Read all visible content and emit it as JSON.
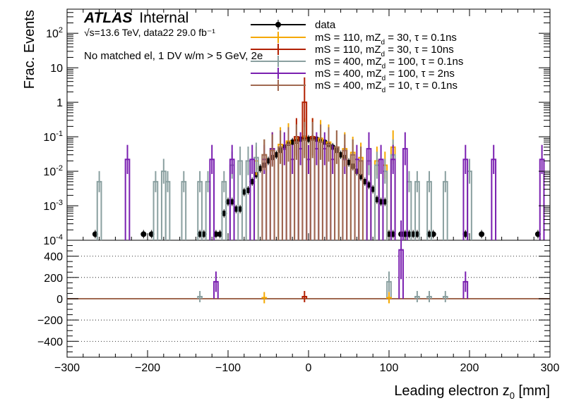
{
  "chart_data": [
    {
      "type": "histogram",
      "panel": "main",
      "ylabel": "Frac. Events",
      "yscale": "log",
      "ylim": [
        0.0001,
        500
      ],
      "xlim": [
        -300,
        300
      ],
      "ytick_labels": [
        "10^{-4}",
        "10^{-3}",
        "10^{-2}",
        "10^{-1}",
        "1",
        "10",
        "10^{2}"
      ],
      "atlas_label": {
        "bold": "ATLAS",
        "rest": "Internal"
      },
      "energy_label": "√s=13.6 TeV, data22 29.0 fb⁻¹",
      "selection_label": "No matched el, 1 DV w/m > 5 GeV, 2e",
      "series": [
        {
          "name": "data",
          "color": "#000000",
          "style": "points",
          "x": [
            -265,
            -205,
            -195,
            -135,
            -130,
            -115,
            -110,
            -105,
            -100,
            -95,
            -90,
            -85,
            -80,
            -75,
            -70,
            -65,
            -60,
            -55,
            -50,
            -45,
            -40,
            -35,
            -30,
            -25,
            -20,
            -15,
            -10,
            -5,
            0,
            5,
            10,
            15,
            20,
            25,
            30,
            35,
            40,
            45,
            50,
            55,
            60,
            65,
            70,
            75,
            80,
            85,
            90,
            95,
            100,
            105,
            115,
            120,
            125,
            130,
            135,
            150,
            155,
            195,
            215,
            285
          ],
          "y": [
            0.00015,
            0.00015,
            0.00015,
            0.00015,
            0.00015,
            0.00015,
            0.00015,
            0.0006,
            0.0013,
            0.0013,
            0.0008,
            0.0008,
            0.0025,
            0.0028,
            0.005,
            0.008,
            0.012,
            0.015,
            0.02,
            0.025,
            0.03,
            0.04,
            0.05,
            0.065,
            0.07,
            0.075,
            0.085,
            0.09,
            0.085,
            0.09,
            0.085,
            0.08,
            0.07,
            0.06,
            0.05,
            0.04,
            0.03,
            0.025,
            0.018,
            0.014,
            0.01,
            0.007,
            0.005,
            0.004,
            0.003,
            0.0015,
            0.0013,
            0.0013,
            0.00015,
            0.00015,
            0.00015,
            0.00015,
            0.00015,
            0.00015,
            0.00015,
            0.00015,
            0.00015,
            0.00015,
            0.00015,
            0.00015
          ]
        },
        {
          "name": "mS = 110, mZ_d = 30, τ = 0.1ns",
          "color": "#f5a800",
          "style": "step",
          "x": [
            -65,
            -55,
            -45,
            -35,
            -25,
            -15,
            -5,
            5,
            15,
            25,
            35,
            45,
            55,
            65,
            75,
            85,
            95,
            105
          ],
          "y": [
            0.02,
            0.03,
            0.045,
            0.06,
            0.075,
            0.09,
            0.1,
            0.1,
            0.09,
            0.07,
            0.05,
            0.045,
            0.035,
            0.025,
            0.02,
            0.02,
            0.015,
            0.05
          ]
        },
        {
          "name": "mS = 110, mZ_d = 30, τ = 10ns",
          "color": "#b22000",
          "style": "step",
          "x": [
            -5,
            -15,
            5
          ],
          "y": [
            1.0,
            0.1,
            0.1
          ]
        },
        {
          "name": "mS = 400, mZ_d = 100, τ = 0.1ns",
          "color": "#8aa0a0",
          "style": "step",
          "x": [
            -260,
            -190,
            -180,
            -175,
            -155,
            -135,
            -125,
            -105,
            -95,
            -85,
            -75,
            -65,
            -55,
            -45,
            -35,
            -25,
            -15,
            -5,
            5,
            15,
            25,
            35,
            45,
            55,
            65,
            75,
            85,
            95,
            105,
            125,
            135,
            150,
            170,
            200
          ],
          "y": [
            0.005,
            0.005,
            0.01,
            0.005,
            0.005,
            0.005,
            0.005,
            0.005,
            0.015,
            0.02,
            0.02,
            0.025,
            0.03,
            0.04,
            0.05,
            0.06,
            0.07,
            0.08,
            0.08,
            0.07,
            0.06,
            0.05,
            0.04,
            0.03,
            0.02,
            0.02,
            0.015,
            0.01,
            0.03,
            0.005,
            0.005,
            0.005,
            0.005,
            0.01
          ]
        },
        {
          "name": "mS = 400, mZ_d = 100, τ = 2ns",
          "color": "#7a1fb0",
          "style": "step",
          "x": [
            -225,
            -120,
            -95,
            -70,
            -55,
            -45,
            -30,
            -20,
            -10,
            0,
            10,
            20,
            30,
            45,
            60,
            75,
            90,
            105,
            120,
            195,
            230,
            290
          ],
          "y": [
            0.022,
            0.022,
            0.022,
            0.022,
            0.022,
            0.045,
            0.045,
            0.022,
            0.045,
            0.022,
            0.045,
            0.045,
            0.022,
            0.022,
            0.022,
            0.045,
            0.022,
            0.022,
            0.045,
            0.022,
            0.022,
            0.022
          ]
        },
        {
          "name": "mS = 400, mZ_d = 10, τ = 0.1ns",
          "color": "#a06850",
          "style": "step",
          "x": [
            -55,
            -45,
            -35,
            -25,
            -15,
            -5,
            5,
            15,
            25,
            35,
            45,
            55,
            65
          ],
          "y": [
            0.03,
            0.04,
            0.05,
            0.06,
            0.07,
            0.08,
            0.08,
            0.07,
            0.06,
            0.05,
            0.04,
            0.03,
            0.02
          ]
        }
      ]
    },
    {
      "type": "histogram",
      "panel": "ratio",
      "xlabel": "Leading electron z_0 [mm]",
      "xlim": [
        -300,
        300
      ],
      "ylim": [
        -550,
        550
      ],
      "yticks": [
        -400,
        -200,
        0,
        200,
        400
      ],
      "xticks": [
        -300,
        -200,
        -100,
        0,
        100,
        200,
        300
      ],
      "grid": "dotted horizontal",
      "series": [
        {
          "color": "#8aa0a0",
          "x": [
            -135,
            100,
            135,
            150,
            170
          ],
          "y": [
            20,
            160,
            20,
            20,
            20
          ]
        },
        {
          "color": "#7a1fb0",
          "x": [
            -115,
            115,
            195
          ],
          "y": [
            160,
            460,
            160
          ]
        },
        {
          "color": "#b22000",
          "x": [
            -5
          ],
          "y": [
            20
          ]
        },
        {
          "color": "#f5a800",
          "x": [
            -55,
            100
          ],
          "y": [
            10,
            10
          ]
        }
      ]
    }
  ]
}
